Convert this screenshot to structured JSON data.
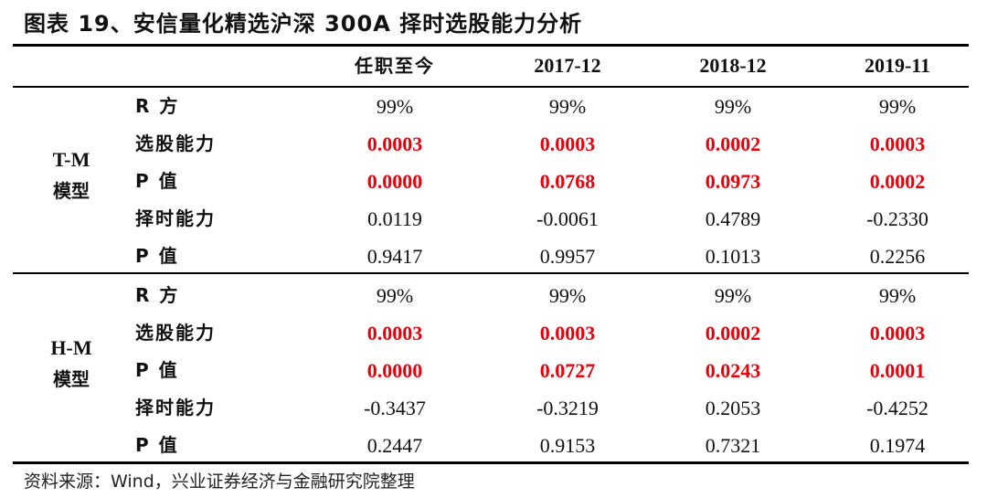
{
  "title": "图表 19、安信量化精选沪深 300A 择时选股能力分析",
  "headers": [
    "任职至今",
    "2017-12",
    "2018-12",
    "2019-11"
  ],
  "groups": [
    {
      "label_line1": "T-M",
      "label_line2": "模型",
      "rows": [
        {
          "metric": "R 方",
          "values": [
            "99%",
            "99%",
            "99%",
            "99%"
          ],
          "highlight": false
        },
        {
          "metric": "选股能力",
          "values": [
            "0.0003",
            "0.0003",
            "0.0002",
            "0.0003"
          ],
          "highlight": true
        },
        {
          "metric": "P 值",
          "values": [
            "0.0000",
            "0.0768",
            "0.0973",
            "0.0002"
          ],
          "highlight": true
        },
        {
          "metric": "择时能力",
          "values": [
            "0.0119",
            "-0.0061",
            "0.4789",
            "-0.2330"
          ],
          "highlight": false
        },
        {
          "metric": "P 值",
          "values": [
            "0.9417",
            "0.9957",
            "0.1013",
            "0.2256"
          ],
          "highlight": false
        }
      ]
    },
    {
      "label_line1": "H-M",
      "label_line2": "模型",
      "rows": [
        {
          "metric": "R 方",
          "values": [
            "99%",
            "99%",
            "99%",
            "99%"
          ],
          "highlight": false
        },
        {
          "metric": "选股能力",
          "values": [
            "0.0003",
            "0.0003",
            "0.0002",
            "0.0003"
          ],
          "highlight": true
        },
        {
          "metric": "P 值",
          "values": [
            "0.0000",
            "0.0727",
            "0.0243",
            "0.0001"
          ],
          "highlight": true
        },
        {
          "metric": "择时能力",
          "values": [
            "-0.3437",
            "-0.3219",
            "0.2053",
            "-0.4252"
          ],
          "highlight": false
        },
        {
          "metric": "P 值",
          "values": [
            "0.2447",
            "0.9153",
            "0.7321",
            "0.1974"
          ],
          "highlight": false
        }
      ]
    }
  ],
  "source": "资料来源：Wind，兴业证券经济与金融研究院整理",
  "colors": {
    "highlight": "#e8000b",
    "text": "#111111",
    "rule": "#000000"
  }
}
